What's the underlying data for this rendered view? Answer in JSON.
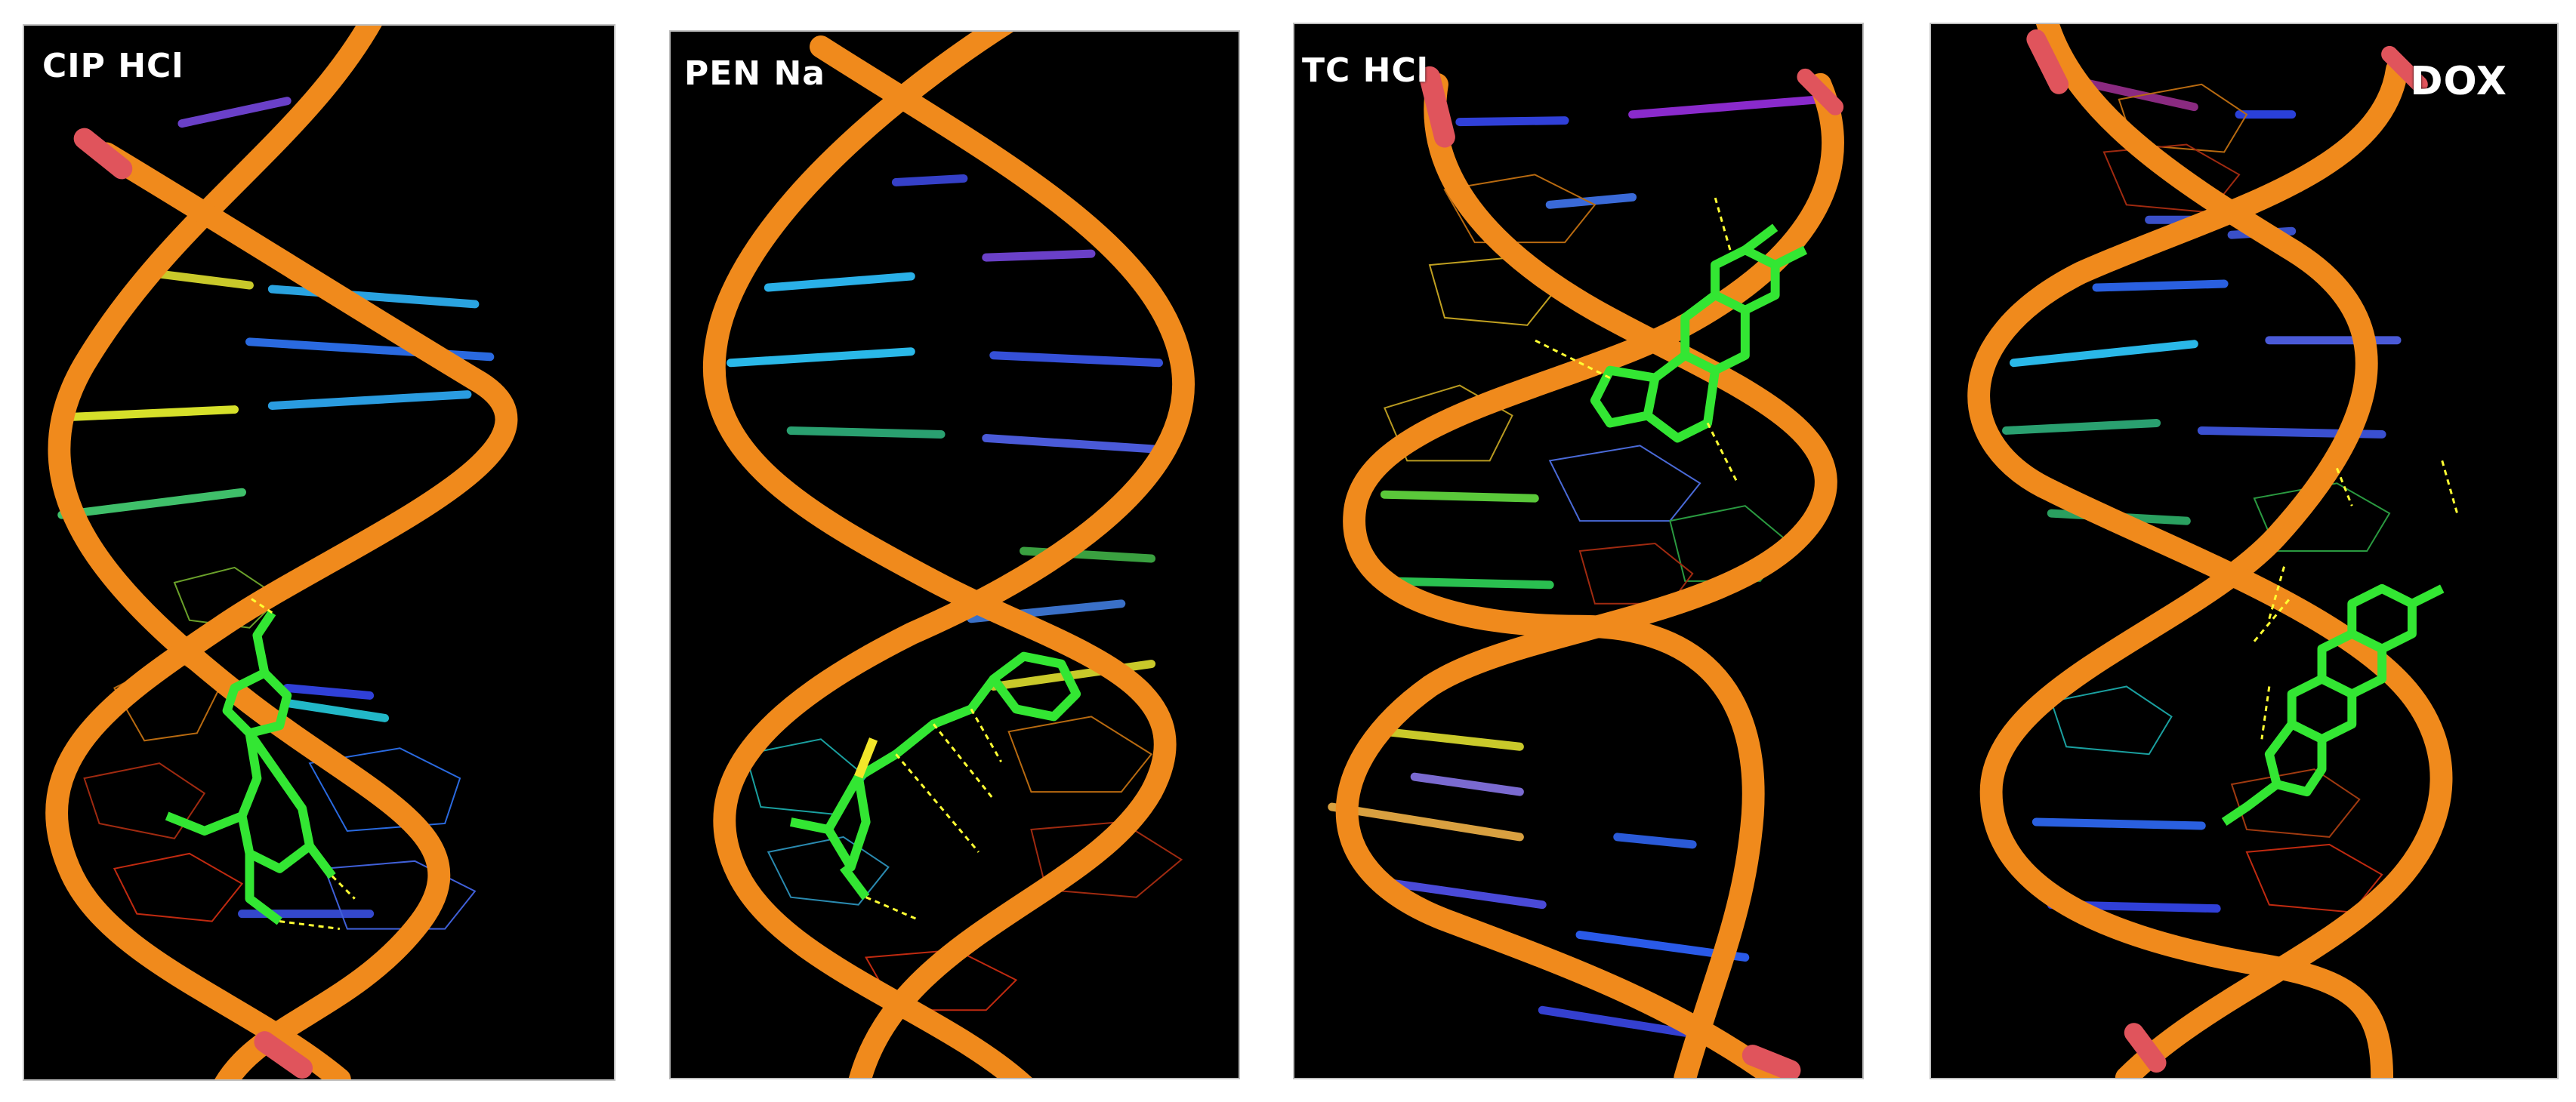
{
  "panels": [
    {
      "label": "CIP HCl"
    },
    {
      "label": "PEN Na"
    },
    {
      "label": "TC HCl"
    },
    {
      "label": "DOX"
    }
  ],
  "colors": {
    "background": "#000000",
    "backbone": "#f08a1c",
    "backbone_end": "#e0545c",
    "ligand": "#33e633",
    "hbond": "#ffff33"
  }
}
